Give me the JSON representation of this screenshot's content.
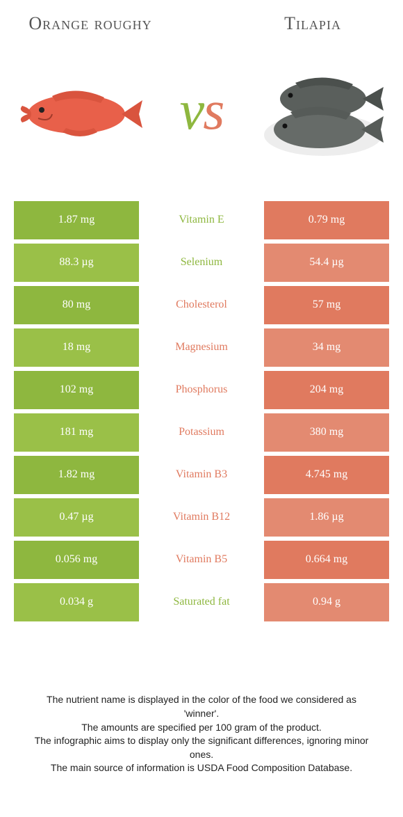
{
  "colors": {
    "left": "#8eb73f",
    "right": "#e07a5f",
    "left_alt": "#9ac048",
    "right_alt": "#e38a71"
  },
  "foods": {
    "left": {
      "name": "Orange roughy"
    },
    "right": {
      "name": "Tilapia"
    }
  },
  "vs": "vs",
  "rows": [
    {
      "nutrient": "Vitamin E",
      "left": "1.87 mg",
      "right": "0.79 mg",
      "winner": "left"
    },
    {
      "nutrient": "Selenium",
      "left": "88.3 µg",
      "right": "54.4 µg",
      "winner": "left"
    },
    {
      "nutrient": "Cholesterol",
      "left": "80 mg",
      "right": "57 mg",
      "winner": "right"
    },
    {
      "nutrient": "Magnesium",
      "left": "18 mg",
      "right": "34 mg",
      "winner": "right"
    },
    {
      "nutrient": "Phosphorus",
      "left": "102 mg",
      "right": "204 mg",
      "winner": "right"
    },
    {
      "nutrient": "Potassium",
      "left": "181 mg",
      "right": "380 mg",
      "winner": "right"
    },
    {
      "nutrient": "Vitamin B3",
      "left": "1.82 mg",
      "right": "4.745 mg",
      "winner": "right"
    },
    {
      "nutrient": "Vitamin B12",
      "left": "0.47 µg",
      "right": "1.86 µg",
      "winner": "right"
    },
    {
      "nutrient": "Vitamin B5",
      "left": "0.056 mg",
      "right": "0.664 mg",
      "winner": "right"
    },
    {
      "nutrient": "Saturated fat",
      "left": "0.034 g",
      "right": "0.94 g",
      "winner": "left"
    }
  ],
  "footer": {
    "line1": "The nutrient name is displayed in the color of the food we considered as 'winner'.",
    "line2": "The amounts are specified per 100 gram of the product.",
    "line3": "The infographic aims to display only the significant differences, ignoring minor ones.",
    "line4": "The main source of information is USDA Food Composition Database."
  }
}
